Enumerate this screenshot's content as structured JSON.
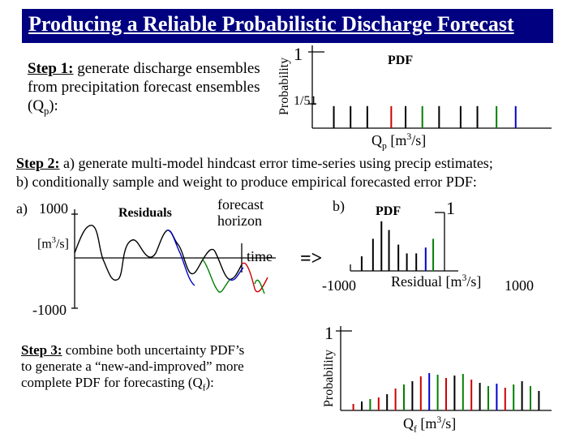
{
  "title": "Producing a Reliable Probabilistic Discharge Forecast",
  "step1": {
    "heading": "Step 1:",
    "text_a": " generate discharge ensembles from precipitation forecast ensembles (Q",
    "sub": "p",
    "text_b": "):"
  },
  "pdf1": {
    "ylabel": "Probability",
    "ytick_top": "1",
    "ytick_low": "1/51",
    "label": "PDF",
    "xlabel_main": "Q",
    "xlabel_sub": "p",
    "xlabel_units": " [m",
    "xlabel_sup": "3",
    "xlabel_end": "/s]",
    "bars": [
      {
        "x": 0.09,
        "h": 0.17,
        "color": "#000000"
      },
      {
        "x": 0.16,
        "h": 0.17,
        "color": "#000000"
      },
      {
        "x": 0.23,
        "h": 0.17,
        "color": "#000000"
      },
      {
        "x": 0.33,
        "h": 0.17,
        "color": "#cc0000"
      },
      {
        "x": 0.39,
        "h": 0.17,
        "color": "#000000"
      },
      {
        "x": 0.46,
        "h": 0.17,
        "color": "#008000"
      },
      {
        "x": 0.53,
        "h": 0.17,
        "color": "#000000"
      },
      {
        "x": 0.62,
        "h": 0.17,
        "color": "#000000"
      },
      {
        "x": 0.69,
        "h": 0.17,
        "color": "#000000"
      },
      {
        "x": 0.77,
        "h": 0.17,
        "color": "#008000"
      },
      {
        "x": 0.85,
        "h": 0.17,
        "color": "#0000cc"
      }
    ]
  },
  "step2": {
    "heading": "Step 2:",
    "line1": "  a) generate multi-model hindcast error time-series using precip estimates;",
    "line2": "b) conditionally sample and weight to produce empirical forecasted error PDF:"
  },
  "panel_a": {
    "label": "a)",
    "ytick_top": "1000",
    "ytick_bottom": "-1000",
    "units": "[m",
    "units_sup": "3",
    "units_end": "/s]",
    "residuals": "Residuals",
    "forecast": "forecast",
    "horizon": "horizon",
    "time": "time"
  },
  "arrow": "=>",
  "panel_b": {
    "label": "b)",
    "pdf": "PDF",
    "ytick_top": "1",
    "xtick_left": "-1000",
    "xtick_right": "1000",
    "xlabel": "Residual [m",
    "xlabel_sup": "3",
    "xlabel_end": "/s]",
    "bars": [
      {
        "x": 0.12,
        "h": 0.25,
        "color": "#000000"
      },
      {
        "x": 0.24,
        "h": 0.55,
        "color": "#000000"
      },
      {
        "x": 0.33,
        "h": 0.85,
        "color": "#000000"
      },
      {
        "x": 0.41,
        "h": 0.7,
        "color": "#000000"
      },
      {
        "x": 0.51,
        "h": 0.45,
        "color": "#000000"
      },
      {
        "x": 0.6,
        "h": 0.3,
        "color": "#000000"
      },
      {
        "x": 0.7,
        "h": 0.3,
        "color": "#000000"
      },
      {
        "x": 0.8,
        "h": 0.4,
        "color": "#0000cc"
      },
      {
        "x": 0.88,
        "h": 0.55,
        "color": "#008000"
      }
    ]
  },
  "step3": {
    "heading": "Step 3:",
    "line1": " combine both uncertainty PDF’s",
    "line2": "to generate a “new-and-improved” more",
    "line3a": "complete PDF for forecasting (Q",
    "sub": "f",
    "line3b": "):"
  },
  "pdf3": {
    "ylabel": "Probability",
    "ytick_top": "1",
    "xlabel_main": "Q",
    "xlabel_sub": "f",
    "xlabel_units": " [m",
    "xlabel_sup": "3",
    "xlabel_end": "/s]",
    "bars": [
      {
        "x": 0.06,
        "h": 0.08,
        "color": "#cc0000"
      },
      {
        "x": 0.1,
        "h": 0.11,
        "color": "#000000"
      },
      {
        "x": 0.14,
        "h": 0.14,
        "color": "#008000"
      },
      {
        "x": 0.18,
        "h": 0.16,
        "color": "#cc0000"
      },
      {
        "x": 0.22,
        "h": 0.2,
        "color": "#000000"
      },
      {
        "x": 0.26,
        "h": 0.27,
        "color": "#cc0000"
      },
      {
        "x": 0.3,
        "h": 0.32,
        "color": "#008000"
      },
      {
        "x": 0.34,
        "h": 0.36,
        "color": "#000000"
      },
      {
        "x": 0.38,
        "h": 0.42,
        "color": "#cc0000"
      },
      {
        "x": 0.42,
        "h": 0.46,
        "color": "#0000cc"
      },
      {
        "x": 0.46,
        "h": 0.44,
        "color": "#008000"
      },
      {
        "x": 0.5,
        "h": 0.4,
        "color": "#cc0000"
      },
      {
        "x": 0.54,
        "h": 0.43,
        "color": "#000000"
      },
      {
        "x": 0.58,
        "h": 0.45,
        "color": "#008000"
      },
      {
        "x": 0.62,
        "h": 0.38,
        "color": "#cc0000"
      },
      {
        "x": 0.66,
        "h": 0.34,
        "color": "#000000"
      },
      {
        "x": 0.7,
        "h": 0.3,
        "color": "#008000"
      },
      {
        "x": 0.74,
        "h": 0.33,
        "color": "#0000cc"
      },
      {
        "x": 0.78,
        "h": 0.28,
        "color": "#cc0000"
      },
      {
        "x": 0.82,
        "h": 0.32,
        "color": "#008000"
      },
      {
        "x": 0.86,
        "h": 0.36,
        "color": "#000000"
      },
      {
        "x": 0.9,
        "h": 0.3,
        "color": "#008000"
      },
      {
        "x": 0.94,
        "h": 0.24,
        "color": "#000000"
      }
    ]
  },
  "colors": {
    "title_bg": "#000080",
    "title_fg": "#ffffff",
    "red": "#cc0000",
    "green": "#008000",
    "blue": "#0000cc"
  }
}
